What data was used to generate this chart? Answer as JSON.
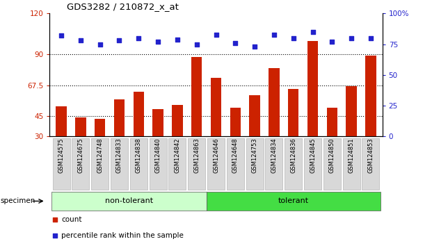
{
  "title": "GDS3282 / 210872_x_at",
  "samples": [
    "GSM124575",
    "GSM124675",
    "GSM124748",
    "GSM124833",
    "GSM124838",
    "GSM124840",
    "GSM124842",
    "GSM124863",
    "GSM124646",
    "GSM124648",
    "GSM124753",
    "GSM124834",
    "GSM124836",
    "GSM124845",
    "GSM124850",
    "GSM124851",
    "GSM124853"
  ],
  "counts": [
    52,
    44,
    43,
    57,
    63,
    50,
    53,
    88,
    73,
    51,
    60,
    80,
    65,
    100,
    51,
    67,
    89
  ],
  "percentile_ranks": [
    82,
    78,
    75,
    78,
    80,
    77,
    79,
    75,
    83,
    76,
    73,
    83,
    80,
    85,
    77,
    80,
    80
  ],
  "non_tolerant_count": 8,
  "tolerant_count": 9,
  "bar_color": "#cc2200",
  "dot_color": "#2222cc",
  "non_tolerant_bg": "#ccffcc",
  "tolerant_bg": "#44dd44",
  "xticklabel_bg": "#d8d8d8",
  "ylim_left": [
    30,
    120
  ],
  "ylim_right": [
    0,
    100
  ],
  "yticks_left": [
    30,
    45,
    67.5,
    90,
    120
  ],
  "ytick_labels_left": [
    "30",
    "45",
    "67.5",
    "90",
    "120"
  ],
  "yticks_right": [
    0,
    25,
    50,
    75,
    100
  ],
  "ytick_labels_right": [
    "0",
    "25",
    "50",
    "75",
    "100%"
  ],
  "hlines": [
    45,
    67.5,
    90
  ],
  "background_color": "#ffffff"
}
